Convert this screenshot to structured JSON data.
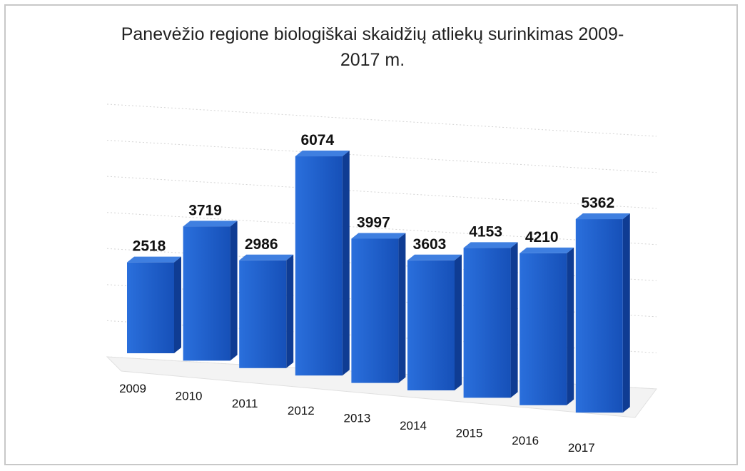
{
  "chart_data": {
    "type": "bar3d",
    "title": "Panevėžio regione biologiškai skaidžių atliekų surinkimas 2009-2017 m.",
    "categories": [
      "2009",
      "2010",
      "2011",
      "2012",
      "2013",
      "2014",
      "2015",
      "2016",
      "2017"
    ],
    "values": [
      2518,
      3719,
      2986,
      6074,
      3997,
      3603,
      4153,
      4210,
      5362
    ],
    "color": "#1f5fc9",
    "ylim": [
      0,
      7000
    ],
    "yticks": [
      0,
      1000,
      2000,
      3000,
      4000,
      5000,
      6000,
      7000
    ],
    "grid": true
  }
}
